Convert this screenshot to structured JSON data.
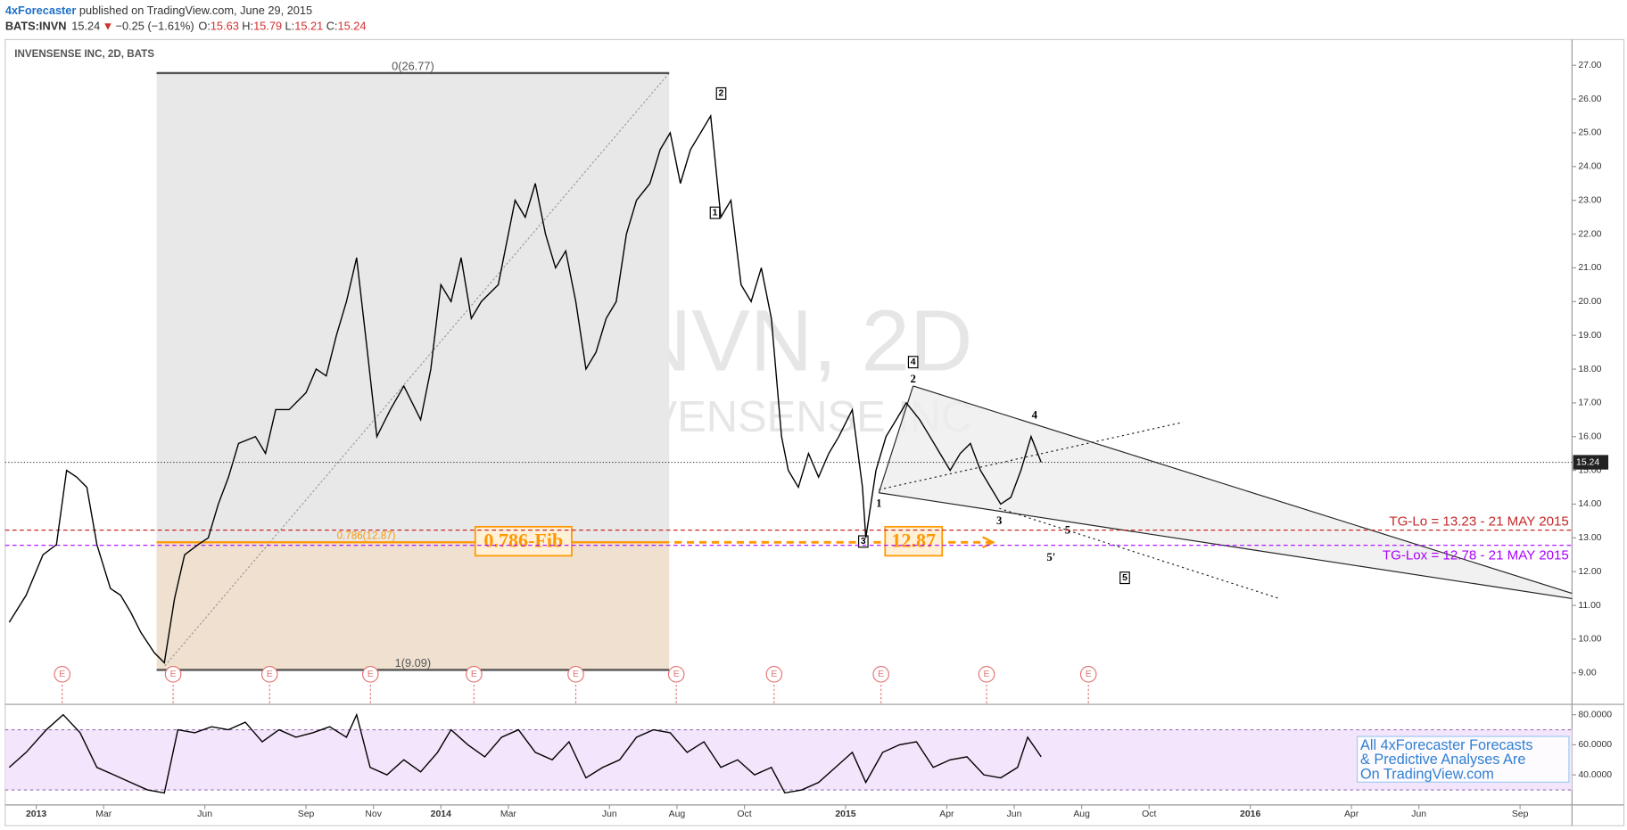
{
  "header": {
    "author": "4xForecaster",
    "published": "published on TradingView.com, June 29, 2015",
    "symbol": "BATS:INVN",
    "price": "15.24",
    "arrow": "▼",
    "change": "−0.25 (−1.61%)",
    "o_label": "O:",
    "o": "15.63",
    "h_label": "H:",
    "h": "15.79",
    "l_label": "L:",
    "l": "15.21",
    "c_label": "C:",
    "c": "15.24"
  },
  "chart_data": [
    {
      "type": "line",
      "title": "INVENSENSE INC, 2D, BATS",
      "watermark": [
        "INVN, 2D",
        "INVENSENSE INC"
      ],
      "color": "#000000",
      "x": [
        -0.8,
        -0.3,
        0.2,
        0.6,
        0.9,
        1.2,
        1.5,
        1.8,
        2.2,
        2.5,
        2.8,
        3.1,
        3.5,
        3.8,
        4.1,
        4.4,
        4.8,
        5.1,
        5.4,
        5.7,
        6.0,
        6.5,
        6.8,
        7.1,
        7.5,
        8.0,
        8.3,
        8.6,
        8.9,
        9.2,
        9.5,
        9.8,
        10.1,
        10.5,
        10.9,
        11.4,
        11.7,
        12.0,
        12.3,
        12.6,
        12.9,
        13.2,
        13.7,
        14.2,
        14.5,
        14.8,
        15.1,
        15.4,
        15.7,
        16.0,
        16.3,
        16.6,
        16.9,
        17.2,
        17.5,
        17.8,
        18.2,
        18.5,
        18.8,
        19.1,
        19.4,
        19.7,
        20.0,
        20.3,
        20.6,
        20.9,
        21.2,
        21.5,
        21.8,
        22.1,
        22.3,
        22.6,
        22.9,
        23.2,
        23.5,
        23.8,
        24.2,
        24.5,
        24.6,
        24.9,
        25.2,
        25.5,
        25.8,
        26.2,
        26.5,
        26.8,
        27.1,
        27.4,
        27.7,
        28.0,
        28.3,
        28.6,
        28.9,
        29.2,
        29.5,
        29.8
      ],
      "values": [
        10.5,
        11.3,
        12.5,
        12.8,
        15.0,
        14.8,
        14.5,
        12.8,
        11.5,
        11.3,
        10.8,
        10.2,
        9.6,
        9.3,
        11.2,
        12.5,
        12.8,
        13.0,
        14.0,
        14.8,
        15.8,
        16.0,
        15.5,
        16.8,
        16.8,
        17.3,
        18.0,
        17.8,
        19.0,
        20.0,
        21.3,
        18.7,
        16.0,
        16.8,
        17.5,
        16.5,
        18.0,
        20.5,
        20.0,
        21.3,
        19.5,
        20.0,
        20.5,
        23.0,
        22.5,
        23.5,
        22.0,
        21.0,
        21.5,
        20.0,
        18.0,
        18.5,
        19.5,
        20.0,
        22.0,
        23.0,
        23.5,
        24.5,
        25.0,
        23.5,
        24.5,
        25.0,
        25.5,
        22.5,
        23.0,
        20.5,
        20.0,
        21.0,
        19.5,
        16.0,
        15.0,
        14.5,
        15.5,
        14.8,
        15.5,
        16.0,
        16.8,
        14.5,
        13.0,
        15.0,
        16.0,
        16.5,
        17.0,
        16.5,
        16.0,
        15.5,
        15.0,
        15.5,
        15.8,
        15.0,
        14.5,
        14.0,
        14.2,
        15.0,
        16.0,
        15.24
      ],
      "xlim": [
        -0.92,
        45.54
      ],
      "ylim": [
        8.1,
        27.7
      ],
      "yticks": [
        {
          "value": 9,
          "label": "9.00"
        },
        {
          "value": 10,
          "label": "10.00"
        },
        {
          "value": 11,
          "label": "11.00"
        },
        {
          "value": 12,
          "label": "12.00"
        },
        {
          "value": 13,
          "label": "13.00"
        },
        {
          "value": 14,
          "label": "14.00"
        },
        {
          "value": 15,
          "label": "15.00"
        },
        {
          "value": 16,
          "label": "16.00"
        },
        {
          "value": 17,
          "label": "17.00"
        },
        {
          "value": 18,
          "label": "18.00"
        },
        {
          "value": 19,
          "label": "19.00"
        },
        {
          "value": 20,
          "label": "20.00"
        },
        {
          "value": 21,
          "label": "21.00"
        },
        {
          "value": 22,
          "label": "22.00"
        },
        {
          "value": 23,
          "label": "23.00"
        },
        {
          "value": 24,
          "label": "24.00"
        },
        {
          "value": 25,
          "label": "25.00"
        },
        {
          "value": 26,
          "label": "26.00"
        },
        {
          "value": 27,
          "label": "27.00"
        }
      ],
      "last_price": 15.24,
      "hlines": [
        {
          "value": 13.23,
          "label": "TG-Lo = 13.23 - 21 MAY 2015",
          "color": "#c62828"
        },
        {
          "value": 12.78,
          "label": "TG-Lox = 12.78 - 21 MAY 2015",
          "color": "#aa00ff"
        }
      ],
      "fib": {
        "x": [
          3.57,
          18.77
        ],
        "levels": [
          {
            "value": 26.77,
            "label": "0(26.77)"
          },
          {
            "value": 12.87,
            "label": "0.786(12.87)"
          },
          {
            "value": 9.09,
            "label": "1(9.09)"
          }
        ],
        "callouts": [
          "0.786-Fib",
          "12.87"
        ]
      },
      "events": [
        {
          "label": "E",
          "x": 0.77
        },
        {
          "label": "E",
          "x": 4.06
        },
        {
          "label": "E",
          "x": 6.92
        },
        {
          "label": "E",
          "x": 9.91
        },
        {
          "label": "E",
          "x": 12.98
        },
        {
          "label": "E",
          "x": 16.0
        },
        {
          "label": "E",
          "x": 18.98
        },
        {
          "label": "E",
          "x": 21.88
        },
        {
          "label": "E",
          "x": 25.05
        },
        {
          "label": "E",
          "x": 28.18
        },
        {
          "label": "E",
          "x": 31.2
        }
      ],
      "waves": [
        "1",
        "2",
        "3",
        "4",
        "5",
        "5'"
      ],
      "boxed_waves": [
        "1",
        "2",
        "3",
        "4",
        "5"
      ]
    },
    {
      "type": "line",
      "color": "#000000",
      "note": [
        "All 4xForecaster Forecasts",
        "& Predictive Analyses Are",
        "On TradingView.com"
      ],
      "x": [
        -0.8,
        -0.3,
        0.3,
        0.8,
        1.3,
        1.8,
        2.3,
        2.8,
        3.3,
        3.8,
        4.2,
        4.7,
        5.2,
        5.7,
        6.2,
        6.7,
        7.2,
        7.7,
        8.2,
        8.7,
        9.2,
        9.5,
        9.9,
        10.4,
        10.9,
        11.4,
        11.9,
        12.3,
        12.8,
        13.3,
        13.8,
        14.3,
        14.8,
        15.3,
        15.8,
        16.3,
        16.8,
        17.3,
        17.8,
        18.3,
        18.8,
        19.3,
        19.8,
        20.3,
        20.8,
        21.3,
        21.8,
        22.2,
        22.7,
        23.2,
        23.7,
        24.2,
        24.6,
        25.1,
        25.6,
        26.1,
        26.6,
        27.1,
        27.6,
        28.1,
        28.6,
        29.1,
        29.4,
        29.8
      ],
      "values": [
        45,
        55,
        70,
        80,
        68,
        45,
        40,
        35,
        30,
        28,
        70,
        68,
        72,
        70,
        75,
        62,
        70,
        65,
        68,
        72,
        65,
        80,
        45,
        40,
        50,
        42,
        55,
        70,
        60,
        52,
        65,
        70,
        55,
        50,
        62,
        38,
        45,
        50,
        65,
        70,
        68,
        55,
        62,
        45,
        50,
        40,
        45,
        28,
        30,
        35,
        45,
        55,
        35,
        55,
        60,
        62,
        45,
        50,
        52,
        40,
        38,
        45,
        65,
        52
      ],
      "xlim": [
        -0.92,
        45.54
      ],
      "ylim": [
        20.7,
        86.2
      ],
      "bands": [
        70,
        30
      ],
      "yticks": [
        {
          "value": 40,
          "label": "40.0000"
        },
        {
          "value": 60,
          "label": "60.0000"
        },
        {
          "value": 80,
          "label": "80.0000"
        }
      ],
      "xticks": [
        {
          "value": 0,
          "label": "2013"
        },
        {
          "value": 2,
          "label": "Mar"
        },
        {
          "value": 5,
          "label": "Jun"
        },
        {
          "value": 8,
          "label": "Sep"
        },
        {
          "value": 10,
          "label": "Nov"
        },
        {
          "value": 12,
          "label": "2014"
        },
        {
          "value": 14,
          "label": "Mar"
        },
        {
          "value": 17,
          "label": "Jun"
        },
        {
          "value": 19,
          "label": "Aug"
        },
        {
          "value": 21,
          "label": "Oct"
        },
        {
          "value": 24,
          "label": "2015"
        },
        {
          "value": 27,
          "label": "Apr"
        },
        {
          "value": 29,
          "label": "Jun"
        },
        {
          "value": 31,
          "label": "Aug"
        },
        {
          "value": 33,
          "label": "Oct"
        },
        {
          "value": 36,
          "label": "2016"
        },
        {
          "value": 39,
          "label": "Apr"
        },
        {
          "value": 41,
          "label": "Jun"
        },
        {
          "value": 44,
          "label": "Sep"
        }
      ]
    }
  ]
}
